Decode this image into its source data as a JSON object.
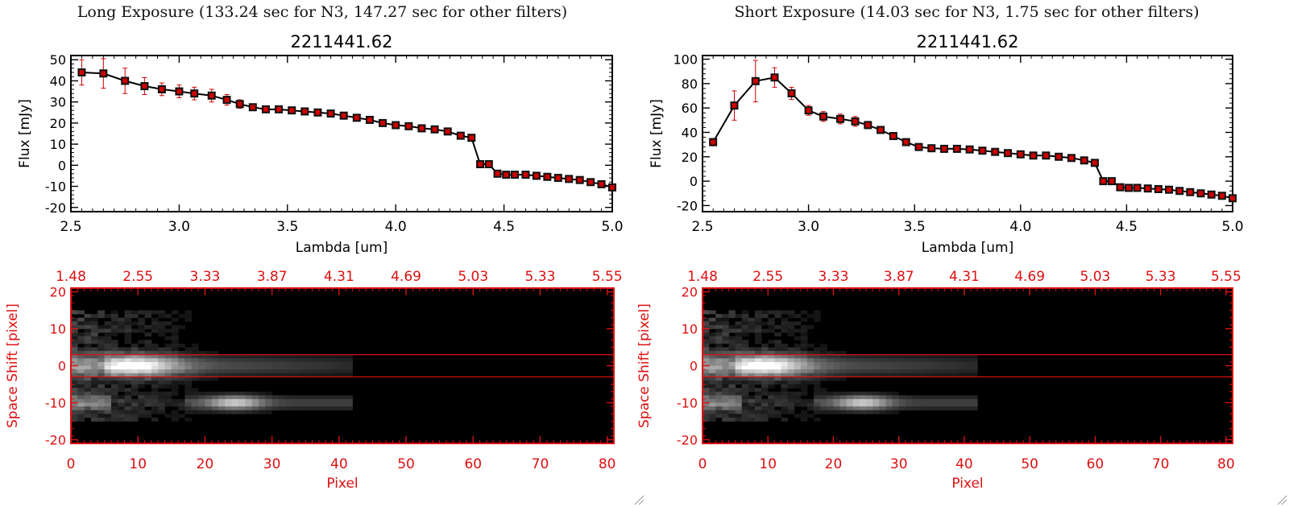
{
  "panels": [
    {
      "heading": "Long Exposure (133.24 sec for N3, 147.27 sec for other filters)",
      "spectrum": {
        "type": "line",
        "title": "2211441.62",
        "xlabel": "Lambda [um]",
        "ylabel": "Flux [mJy]",
        "xlim": [
          2.5,
          5.0
        ],
        "ylim": [
          -22,
          52
        ],
        "xticks": [
          "2.5",
          "3.0",
          "3.5",
          "4.0",
          "4.5",
          "5.0"
        ],
        "xtick_values": [
          2.5,
          3.0,
          3.5,
          4.0,
          4.5,
          5.0
        ],
        "yticks": [
          "-20",
          "-10",
          "0",
          "10",
          "20",
          "30",
          "40",
          "50"
        ],
        "ytick_values": [
          -20,
          -10,
          0,
          10,
          20,
          30,
          40,
          50
        ],
        "x": [
          2.55,
          2.65,
          2.75,
          2.84,
          2.92,
          3.0,
          3.07,
          3.15,
          3.22,
          3.28,
          3.34,
          3.4,
          3.46,
          3.52,
          3.58,
          3.64,
          3.7,
          3.76,
          3.82,
          3.88,
          3.94,
          4.0,
          4.06,
          4.12,
          4.18,
          4.24,
          4.3,
          4.35,
          4.39,
          4.43,
          4.47,
          4.51,
          4.55,
          4.6,
          4.65,
          4.7,
          4.75,
          4.8,
          4.85,
          4.9,
          4.95,
          5.0
        ],
        "y": [
          44,
          43.5,
          40,
          37.5,
          36,
          35,
          34,
          33,
          31,
          29,
          27.5,
          26.5,
          26.5,
          26,
          25.5,
          25,
          24.5,
          23.5,
          22.5,
          21.5,
          20,
          19,
          18.5,
          17.5,
          17,
          16,
          14,
          13,
          0.5,
          0.5,
          -4,
          -4.5,
          -4.5,
          -4.5,
          -5,
          -5.5,
          -6,
          -6.5,
          -7,
          -8,
          -9,
          -10.5
        ],
        "err": [
          6,
          7,
          6,
          4,
          3,
          3,
          3,
          3,
          2.5,
          2,
          1.5,
          1,
          1,
          1,
          1,
          1,
          1,
          1,
          1,
          1,
          1,
          1,
          1,
          1,
          1,
          1,
          1,
          1,
          1,
          1,
          1,
          1,
          1,
          1,
          1,
          1,
          1,
          1,
          1,
          1,
          1,
          1
        ],
        "line_color": "#000000",
        "error_color": "#cc0000",
        "marker_fill": "#cc0000"
      },
      "image": {
        "type": "heatmap",
        "xlabel": "Pixel",
        "ylabel": "Space Shift [pixel]",
        "xlim": [
          0,
          81
        ],
        "ylim": [
          -21,
          21
        ],
        "xticks": [
          "0",
          "10",
          "20",
          "30",
          "40",
          "50",
          "60",
          "70",
          "80"
        ],
        "xtick_values": [
          0,
          10,
          20,
          30,
          40,
          50,
          60,
          70,
          80
        ],
        "top_ticks": [
          "1.48",
          "2.55",
          "3.33",
          "3.87",
          "4.31",
          "4.69",
          "5.03",
          "5.33",
          "5.55"
        ],
        "yticks": [
          "-20",
          "-10",
          "0",
          "10",
          "20"
        ],
        "ytick_values": [
          -20,
          -10,
          0,
          10,
          20
        ],
        "aperture_lines": [
          3,
          -3
        ],
        "axis_color": "#dd1111"
      }
    },
    {
      "heading": "Short Exposure (14.03 sec for N3, 1.75 sec for other filters)",
      "spectrum": {
        "type": "line",
        "title": "2211441.62",
        "xlabel": "Lambda [um]",
        "ylabel": "Flux [mJy]",
        "xlim": [
          2.5,
          5.0
        ],
        "ylim": [
          -25,
          103
        ],
        "xticks": [
          "2.5",
          "3.0",
          "3.5",
          "4.0",
          "4.5",
          "5.0"
        ],
        "xtick_values": [
          2.5,
          3.0,
          3.5,
          4.0,
          4.5,
          5.0
        ],
        "yticks": [
          "-20",
          "0",
          "20",
          "40",
          "60",
          "80",
          "100"
        ],
        "ytick_values": [
          -20,
          0,
          20,
          40,
          60,
          80,
          100
        ],
        "x": [
          2.55,
          2.65,
          2.75,
          2.84,
          2.92,
          3.0,
          3.07,
          3.15,
          3.22,
          3.28,
          3.34,
          3.4,
          3.46,
          3.52,
          3.58,
          3.64,
          3.7,
          3.76,
          3.82,
          3.88,
          3.94,
          4.0,
          4.06,
          4.12,
          4.18,
          4.24,
          4.3,
          4.35,
          4.39,
          4.43,
          4.47,
          4.51,
          4.55,
          4.6,
          4.65,
          4.7,
          4.75,
          4.8,
          4.85,
          4.9,
          4.95,
          5.0
        ],
        "y": [
          32,
          62,
          82,
          85,
          72,
          58,
          53,
          51,
          49,
          46,
          42,
          37,
          32,
          28,
          27,
          26.5,
          26.5,
          26,
          25,
          24,
          23,
          22,
          21,
          21,
          20,
          19,
          17,
          15,
          0,
          0,
          -5,
          -5.5,
          -5.5,
          -6,
          -6.5,
          -7,
          -8,
          -9,
          -10,
          -11,
          -12,
          -14
        ],
        "err": [
          3,
          12,
          17,
          8,
          5,
          4,
          4,
          4,
          4,
          3,
          2,
          2,
          2,
          1.5,
          1.5,
          1.5,
          1.5,
          1.5,
          1.5,
          1.5,
          1.5,
          1.5,
          1.5,
          1.5,
          1.5,
          1.5,
          1.5,
          1.5,
          1.5,
          1.5,
          1.5,
          1.5,
          1.5,
          1.5,
          1.5,
          1.5,
          1.5,
          1.5,
          1.5,
          1.5,
          1.5,
          1.5
        ],
        "line_color": "#000000",
        "error_color": "#cc0000",
        "marker_fill": "#cc0000"
      },
      "image": {
        "type": "heatmap",
        "xlabel": "Pixel",
        "ylabel": "Space Shift [pixel]",
        "xlim": [
          0,
          81
        ],
        "ylim": [
          -21,
          21
        ],
        "xticks": [
          "0",
          "10",
          "20",
          "30",
          "40",
          "50",
          "60",
          "70",
          "80"
        ],
        "xtick_values": [
          0,
          10,
          20,
          30,
          40,
          50,
          60,
          70,
          80
        ],
        "top_ticks": [
          "1.48",
          "2.55",
          "3.33",
          "3.87",
          "4.31",
          "4.69",
          "5.03",
          "5.33",
          "5.55"
        ],
        "yticks": [
          "-20",
          "-10",
          "0",
          "10",
          "20"
        ],
        "ytick_values": [
          -20,
          -10,
          0,
          10,
          20
        ],
        "aperture_lines": [
          3,
          -3
        ],
        "axis_color": "#dd1111"
      }
    }
  ]
}
